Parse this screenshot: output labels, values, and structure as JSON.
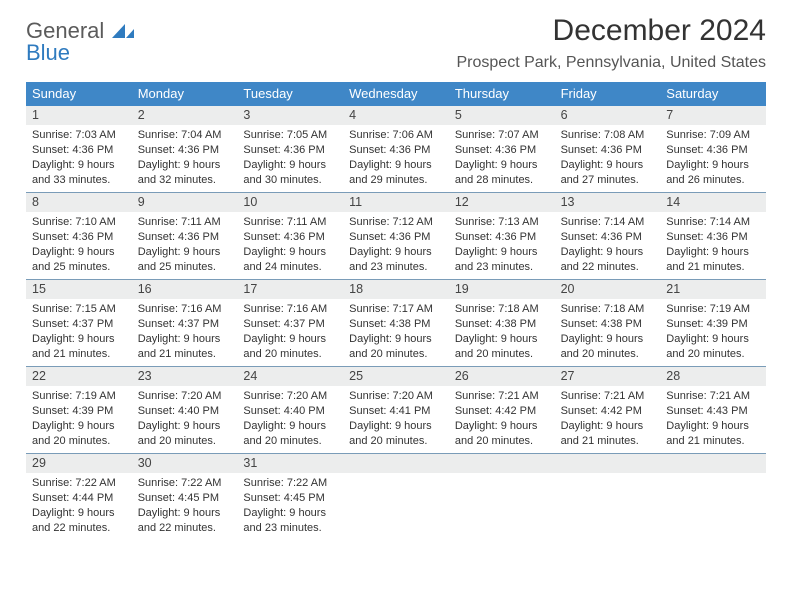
{
  "logo": {
    "text1": "General",
    "text2": "Blue",
    "mark_color": "#2f7bbf"
  },
  "title": "December 2024",
  "location": "Prospect Park, Pennsylvania, United States",
  "header_bg": "#3f87c7",
  "rule_color": "#7a9cb8",
  "daynum_bg": "#eceded",
  "dow": [
    "Sunday",
    "Monday",
    "Tuesday",
    "Wednesday",
    "Thursday",
    "Friday",
    "Saturday"
  ],
  "weeks": [
    [
      {
        "n": "1",
        "sr": "7:03 AM",
        "ss": "4:36 PM",
        "dl1": "9 hours",
        "dl2": "and 33 minutes."
      },
      {
        "n": "2",
        "sr": "7:04 AM",
        "ss": "4:36 PM",
        "dl1": "9 hours",
        "dl2": "and 32 minutes."
      },
      {
        "n": "3",
        "sr": "7:05 AM",
        "ss": "4:36 PM",
        "dl1": "9 hours",
        "dl2": "and 30 minutes."
      },
      {
        "n": "4",
        "sr": "7:06 AM",
        "ss": "4:36 PM",
        "dl1": "9 hours",
        "dl2": "and 29 minutes."
      },
      {
        "n": "5",
        "sr": "7:07 AM",
        "ss": "4:36 PM",
        "dl1": "9 hours",
        "dl2": "and 28 minutes."
      },
      {
        "n": "6",
        "sr": "7:08 AM",
        "ss": "4:36 PM",
        "dl1": "9 hours",
        "dl2": "and 27 minutes."
      },
      {
        "n": "7",
        "sr": "7:09 AM",
        "ss": "4:36 PM",
        "dl1": "9 hours",
        "dl2": "and 26 minutes."
      }
    ],
    [
      {
        "n": "8",
        "sr": "7:10 AM",
        "ss": "4:36 PM",
        "dl1": "9 hours",
        "dl2": "and 25 minutes."
      },
      {
        "n": "9",
        "sr": "7:11 AM",
        "ss": "4:36 PM",
        "dl1": "9 hours",
        "dl2": "and 25 minutes."
      },
      {
        "n": "10",
        "sr": "7:11 AM",
        "ss": "4:36 PM",
        "dl1": "9 hours",
        "dl2": "and 24 minutes."
      },
      {
        "n": "11",
        "sr": "7:12 AM",
        "ss": "4:36 PM",
        "dl1": "9 hours",
        "dl2": "and 23 minutes."
      },
      {
        "n": "12",
        "sr": "7:13 AM",
        "ss": "4:36 PM",
        "dl1": "9 hours",
        "dl2": "and 23 minutes."
      },
      {
        "n": "13",
        "sr": "7:14 AM",
        "ss": "4:36 PM",
        "dl1": "9 hours",
        "dl2": "and 22 minutes."
      },
      {
        "n": "14",
        "sr": "7:14 AM",
        "ss": "4:36 PM",
        "dl1": "9 hours",
        "dl2": "and 21 minutes."
      }
    ],
    [
      {
        "n": "15",
        "sr": "7:15 AM",
        "ss": "4:37 PM",
        "dl1": "9 hours",
        "dl2": "and 21 minutes."
      },
      {
        "n": "16",
        "sr": "7:16 AM",
        "ss": "4:37 PM",
        "dl1": "9 hours",
        "dl2": "and 21 minutes."
      },
      {
        "n": "17",
        "sr": "7:16 AM",
        "ss": "4:37 PM",
        "dl1": "9 hours",
        "dl2": "and 20 minutes."
      },
      {
        "n": "18",
        "sr": "7:17 AM",
        "ss": "4:38 PM",
        "dl1": "9 hours",
        "dl2": "and 20 minutes."
      },
      {
        "n": "19",
        "sr": "7:18 AM",
        "ss": "4:38 PM",
        "dl1": "9 hours",
        "dl2": "and 20 minutes."
      },
      {
        "n": "20",
        "sr": "7:18 AM",
        "ss": "4:38 PM",
        "dl1": "9 hours",
        "dl2": "and 20 minutes."
      },
      {
        "n": "21",
        "sr": "7:19 AM",
        "ss": "4:39 PM",
        "dl1": "9 hours",
        "dl2": "and 20 minutes."
      }
    ],
    [
      {
        "n": "22",
        "sr": "7:19 AM",
        "ss": "4:39 PM",
        "dl1": "9 hours",
        "dl2": "and 20 minutes."
      },
      {
        "n": "23",
        "sr": "7:20 AM",
        "ss": "4:40 PM",
        "dl1": "9 hours",
        "dl2": "and 20 minutes."
      },
      {
        "n": "24",
        "sr": "7:20 AM",
        "ss": "4:40 PM",
        "dl1": "9 hours",
        "dl2": "and 20 minutes."
      },
      {
        "n": "25",
        "sr": "7:20 AM",
        "ss": "4:41 PM",
        "dl1": "9 hours",
        "dl2": "and 20 minutes."
      },
      {
        "n": "26",
        "sr": "7:21 AM",
        "ss": "4:42 PM",
        "dl1": "9 hours",
        "dl2": "and 20 minutes."
      },
      {
        "n": "27",
        "sr": "7:21 AM",
        "ss": "4:42 PM",
        "dl1": "9 hours",
        "dl2": "and 21 minutes."
      },
      {
        "n": "28",
        "sr": "7:21 AM",
        "ss": "4:43 PM",
        "dl1": "9 hours",
        "dl2": "and 21 minutes."
      }
    ],
    [
      {
        "n": "29",
        "sr": "7:22 AM",
        "ss": "4:44 PM",
        "dl1": "9 hours",
        "dl2": "and 22 minutes."
      },
      {
        "n": "30",
        "sr": "7:22 AM",
        "ss": "4:45 PM",
        "dl1": "9 hours",
        "dl2": "and 22 minutes."
      },
      {
        "n": "31",
        "sr": "7:22 AM",
        "ss": "4:45 PM",
        "dl1": "9 hours",
        "dl2": "and 23 minutes."
      },
      {
        "empty": true
      },
      {
        "empty": true
      },
      {
        "empty": true
      },
      {
        "empty": true
      }
    ]
  ],
  "labels": {
    "sunrise_prefix": "Sunrise: ",
    "sunset_prefix": "Sunset: ",
    "daylight_prefix": "Daylight: "
  }
}
